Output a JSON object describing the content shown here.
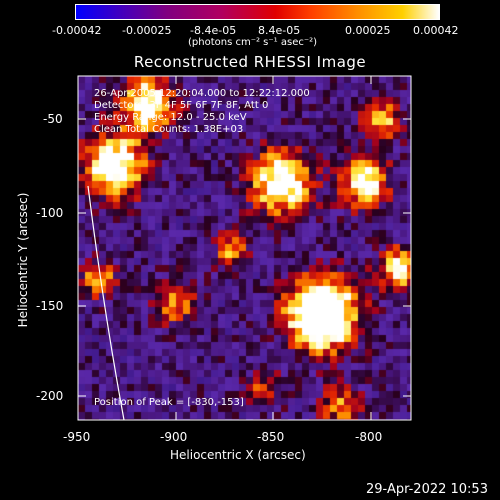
{
  "colorbar": {
    "ticks": [
      "-0.00042",
      "-0.00025",
      "-8.4e-05",
      "8.4e-05",
      "0.00025",
      "0.00042"
    ],
    "units": "(photons cm⁻² s⁻¹ asec⁻²)"
  },
  "plot": {
    "title": "Reconstructed RHESSI Image",
    "xlabel": "Heliocentric X (arcsec)",
    "ylabel": "Heliocentric Y (arcsec)",
    "xticks": [
      "-950",
      "-900",
      "-850",
      "-800"
    ],
    "yticks": [
      "-50",
      "-100",
      "-150",
      "-200"
    ],
    "annotations": {
      "time": "26-Apr-2005 12:20:04.000 to 12:22:12.000",
      "detectors": "Detectors: 3F 4F 5F 6F 7F 8F, Att 0",
      "energy": "Energy Range: 12.0 - 25.0 keV",
      "clean": "Clean     Total Counts: 1.38E+03",
      "peak": "Position of Peak = [-830,-153]"
    }
  },
  "footer": {
    "timestamp": "29-Apr-2022 10:53"
  }
}
